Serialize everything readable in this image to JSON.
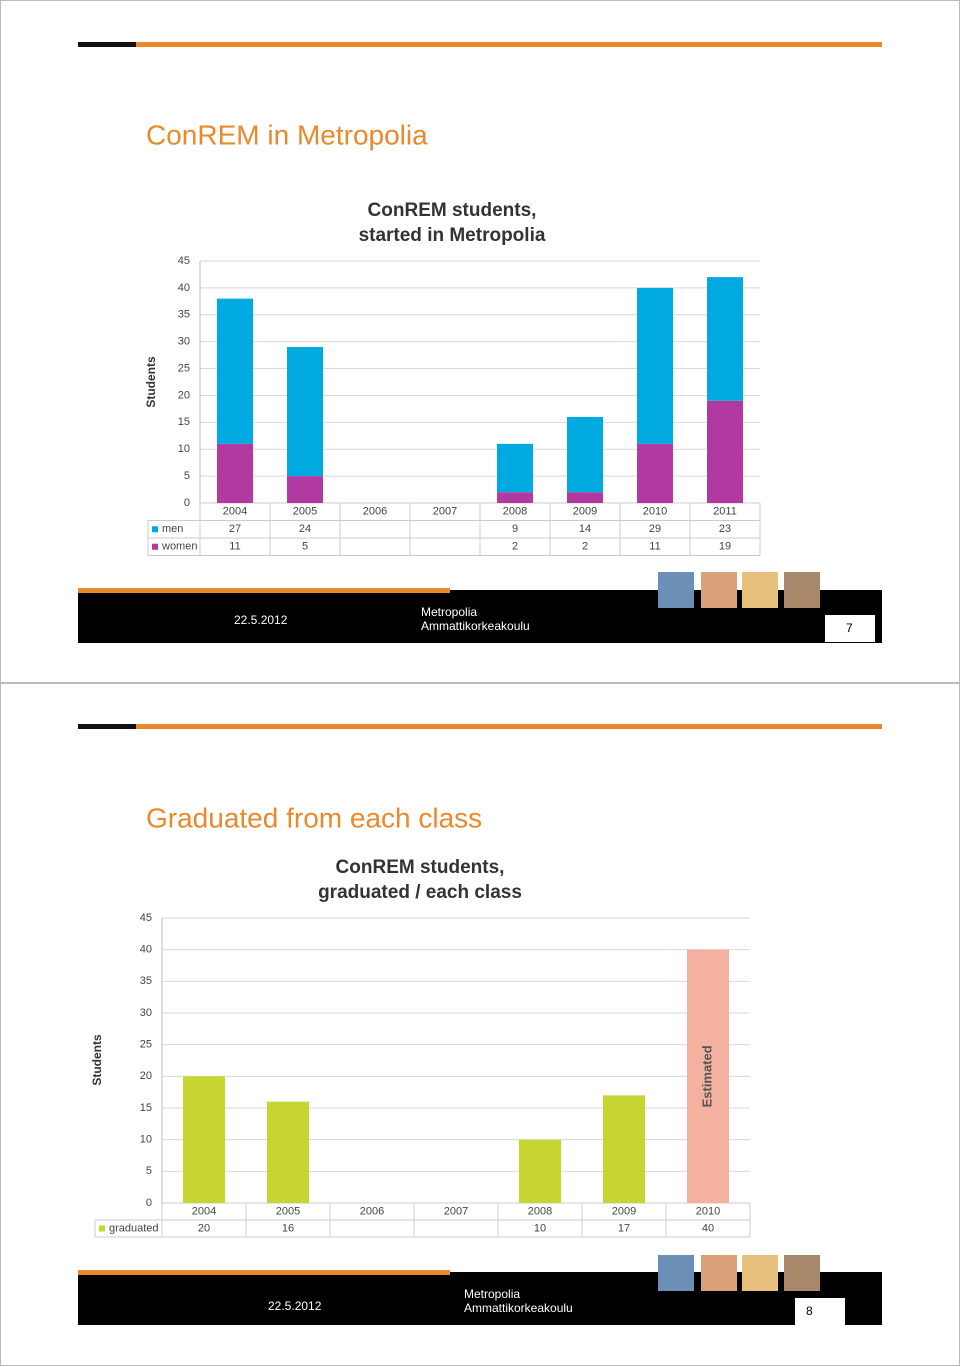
{
  "slides": [
    {
      "title": "ConREM in Metropolia",
      "date": "22.5.2012",
      "org": [
        "Metropolia",
        "Ammattikorkeakoulu"
      ],
      "page": "7"
    },
    {
      "title": "Graduated from each class",
      "date": "22.5.2012",
      "org": [
        "Metropolia",
        "Ammattikorkeakoulu"
      ],
      "page": "8"
    }
  ],
  "chart_data": [
    {
      "type": "stacked_bar",
      "title": [
        "ConREM students,",
        "started in Metropolia"
      ],
      "y_label": "Students",
      "categories": [
        "2004",
        "2005",
        "2006",
        "2007",
        "2008",
        "2009",
        "2010",
        "2011"
      ],
      "series": [
        {
          "name": "men",
          "color": "#00a9e0",
          "values": [
            27,
            24,
            null,
            null,
            9,
            14,
            29,
            23
          ]
        },
        {
          "name": "women",
          "color": "#b2399f",
          "values": [
            11,
            5,
            null,
            null,
            2,
            2,
            11,
            19
          ]
        }
      ],
      "ylim": [
        0,
        45
      ],
      "yticks": [
        0,
        5,
        10,
        15,
        20,
        25,
        30,
        35,
        40,
        45
      ],
      "grid": true,
      "data_table": true
    },
    {
      "type": "bar",
      "title": [
        "ConREM students,",
        "graduated / each class"
      ],
      "y_label": "Students",
      "categories": [
        "2004",
        "2005",
        "2006",
        "2007",
        "2008",
        "2009",
        "2010"
      ],
      "series": [
        {
          "name": "graduated",
          "color": "#c6d531",
          "values": [
            20,
            16,
            null,
            null,
            10,
            17,
            40
          ],
          "colors": [
            "#c6d531",
            "#c6d531",
            "#c6d531",
            "#c6d531",
            "#c6d531",
            "#c6d531",
            "#f5b1a0"
          ]
        }
      ],
      "annotations": [
        {
          "text": "Estimated",
          "x": "2010"
        }
      ],
      "ylim": [
        0,
        45
      ],
      "yticks": [
        0,
        5,
        10,
        15,
        20,
        25,
        30,
        35,
        40,
        45
      ],
      "grid": true,
      "data_table": true
    }
  ]
}
